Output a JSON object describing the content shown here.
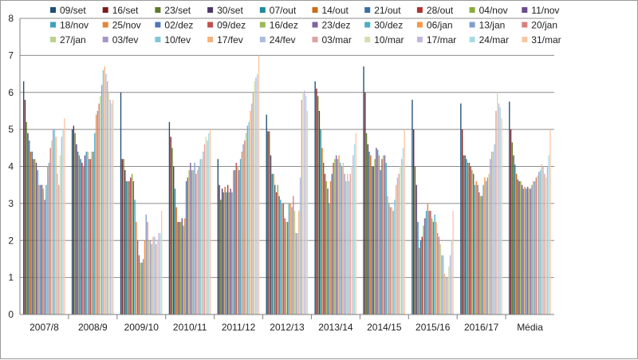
{
  "chart_data": {
    "type": "bar",
    "title": "",
    "xlabel": "",
    "ylabel": "",
    "ylim": [
      0,
      8
    ],
    "yticks": [
      0,
      1,
      2,
      3,
      4,
      5,
      6,
      7,
      8
    ],
    "grid": true,
    "legend_position": "top",
    "categories": [
      "2007/8",
      "2008/9",
      "2009/10",
      "2010/11",
      "2011/12",
      "2012/13",
      "2013/14",
      "2014/15",
      "2015/16",
      "2016/17",
      "Média"
    ],
    "series": [
      {
        "name": "09/set",
        "color": "#1f4e79",
        "values": [
          6.3,
          5.0,
          6.0,
          5.2,
          4.2,
          5.4,
          6.3,
          6.7,
          5.8,
          5.7,
          5.75
        ]
      },
      {
        "name": "16/set",
        "color": "#7b1c1c",
        "values": [
          5.8,
          5.1,
          4.2,
          4.8,
          3.5,
          4.95,
          6.1,
          6.0,
          5.0,
          5.0,
          5.0
        ]
      },
      {
        "name": "23/set",
        "color": "#5b7a2a",
        "values": [
          5.2,
          4.9,
          4.2,
          4.5,
          3.1,
          4.95,
          5.9,
          4.9,
          4.0,
          4.3,
          4.65
        ]
      },
      {
        "name": "30/set",
        "color": "#4b3868",
        "values": [
          4.9,
          4.6,
          3.9,
          4.0,
          3.4,
          4.3,
          5.5,
          4.6,
          3.5,
          4.3,
          4.3
        ]
      },
      {
        "name": "07/out",
        "color": "#1e8a9e",
        "values": [
          4.7,
          4.4,
          3.6,
          3.4,
          3.3,
          3.8,
          5.0,
          4.4,
          2.5,
          4.2,
          4.05
        ]
      },
      {
        "name": "14/out",
        "color": "#d06a14",
        "values": [
          4.4,
          4.3,
          3.6,
          2.9,
          3.45,
          3.8,
          4.5,
          4.3,
          1.8,
          4.1,
          3.8
        ]
      },
      {
        "name": "21/out",
        "color": "#3a6ea5",
        "values": [
          4.4,
          4.2,
          3.6,
          2.5,
          3.3,
          3.5,
          4.1,
          4.0,
          2.0,
          4.1,
          3.65
        ]
      },
      {
        "name": "28/out",
        "color": "#b0322e",
        "values": [
          4.2,
          4.1,
          3.7,
          2.5,
          3.5,
          3.3,
          3.8,
          4.0,
          2.1,
          4.0,
          3.6
        ]
      },
      {
        "name": "04/nov",
        "color": "#8aab3c",
        "values": [
          4.2,
          4.0,
          3.8,
          2.5,
          3.3,
          3.5,
          3.6,
          4.2,
          2.4,
          3.9,
          3.6
        ]
      },
      {
        "name": "11/nov",
        "color": "#6c4b91",
        "values": [
          4.1,
          4.3,
          3.6,
          2.6,
          3.4,
          3.2,
          3.4,
          4.5,
          2.6,
          3.8,
          3.5
        ]
      },
      {
        "name": "18/nov",
        "color": "#3ba3c2",
        "values": [
          3.9,
          4.4,
          3.1,
          2.4,
          3.3,
          3.1,
          3.0,
          4.45,
          2.8,
          3.5,
          3.4
        ]
      },
      {
        "name": "25/nov",
        "color": "#e8843a",
        "values": [
          3.5,
          4.4,
          2.5,
          2.6,
          3.9,
          3.0,
          3.6,
          4.3,
          3.0,
          3.6,
          3.45
        ]
      },
      {
        "name": "02/dez",
        "color": "#4f77b8",
        "values": [
          3.5,
          4.2,
          2.0,
          3.6,
          3.9,
          3.0,
          3.8,
          3.9,
          2.8,
          3.5,
          3.4
        ]
      },
      {
        "name": "09/dez",
        "color": "#c0504d",
        "values": [
          3.5,
          4.2,
          1.6,
          3.7,
          4.1,
          2.6,
          4.1,
          4.2,
          2.8,
          3.3,
          3.45
        ]
      },
      {
        "name": "16/dez",
        "color": "#9bbb59",
        "values": [
          3.4,
          4.4,
          1.4,
          3.9,
          4.0,
          2.5,
          4.2,
          4.3,
          2.6,
          3.2,
          3.4
        ]
      },
      {
        "name": "23/dez",
        "color": "#8064a2",
        "values": [
          3.1,
          4.4,
          1.4,
          4.1,
          3.9,
          2.5,
          4.3,
          4.3,
          2.5,
          3.2,
          3.4
        ]
      },
      {
        "name": "30/dez",
        "color": "#4bacc6",
        "values": [
          3.5,
          4.9,
          1.5,
          3.9,
          4.2,
          3.0,
          4.2,
          4.1,
          2.7,
          3.5,
          3.5
        ]
      },
      {
        "name": "06/jan",
        "color": "#f79646",
        "values": [
          4.0,
          5.4,
          2.0,
          3.9,
          4.4,
          3.0,
          4.3,
          3.2,
          2.5,
          3.7,
          3.6
        ]
      },
      {
        "name": "13/jan",
        "color": "#7f9fcf",
        "values": [
          4.1,
          5.5,
          2.7,
          4.1,
          4.6,
          2.9,
          4.1,
          3.0,
          2.2,
          3.6,
          3.6
        ]
      },
      {
        "name": "20/jan",
        "color": "#d8807a",
        "values": [
          4.5,
          5.7,
          2.5,
          3.8,
          4.7,
          3.2,
          4.0,
          2.9,
          2.1,
          3.7,
          3.7
        ]
      },
      {
        "name": "27/jan",
        "color": "#b9d38a",
        "values": [
          4.7,
          5.9,
          2.0,
          3.9,
          4.9,
          2.8,
          4.1,
          2.9,
          1.9,
          3.8,
          3.75
        ]
      },
      {
        "name": "03/fev",
        "color": "#a796c3",
        "values": [
          5.0,
          6.2,
          2.0,
          4.0,
          5.1,
          2.2,
          3.8,
          2.8,
          1.6,
          4.2,
          3.85
        ]
      },
      {
        "name": "10/fev",
        "color": "#7fc8d9",
        "values": [
          5.0,
          6.6,
          1.9,
          4.2,
          5.2,
          2.2,
          3.6,
          3.1,
          1.6,
          4.4,
          3.9
        ]
      },
      {
        "name": "17/fev",
        "color": "#f7b27d",
        "values": [
          4.8,
          6.7,
          2.1,
          4.2,
          5.5,
          2.8,
          3.8,
          3.5,
          1.1,
          4.4,
          4.05
        ]
      },
      {
        "name": "24/fev",
        "color": "#a9bde0",
        "values": [
          3.8,
          6.5,
          2.1,
          4.4,
          5.7,
          3.7,
          3.6,
          3.7,
          1.0,
          4.6,
          4.0
        ]
      },
      {
        "name": "03/mar",
        "color": "#dfa39f",
        "values": [
          3.5,
          6.3,
          1.9,
          4.6,
          6.0,
          5.8,
          3.8,
          3.8,
          1.0,
          5.5,
          3.8
        ]
      },
      {
        "name": "10/mar",
        "color": "#cfe0b0",
        "values": [
          4.3,
          6.0,
          2.0,
          4.8,
          6.3,
          6.0,
          4.0,
          4.0,
          1.3,
          6.0,
          3.7
        ]
      },
      {
        "name": "17/mar",
        "color": "#c4b7da",
        "values": [
          4.8,
          5.8,
          2.2,
          4.7,
          6.4,
          6.05,
          4.3,
          4.2,
          1.6,
          5.7,
          4.0
        ]
      },
      {
        "name": "24/mar",
        "color": "#a8dbe7",
        "values": [
          5.0,
          5.7,
          2.2,
          4.9,
          6.5,
          5.9,
          4.6,
          4.5,
          2.0,
          5.6,
          4.3
        ]
      },
      {
        "name": "31/mar",
        "color": "#fac7a6",
        "values": [
          5.3,
          5.8,
          2.8,
          5.0,
          7.0,
          5.5,
          4.9,
          5.0,
          2.8,
          5.3,
          5.0
        ]
      }
    ]
  }
}
